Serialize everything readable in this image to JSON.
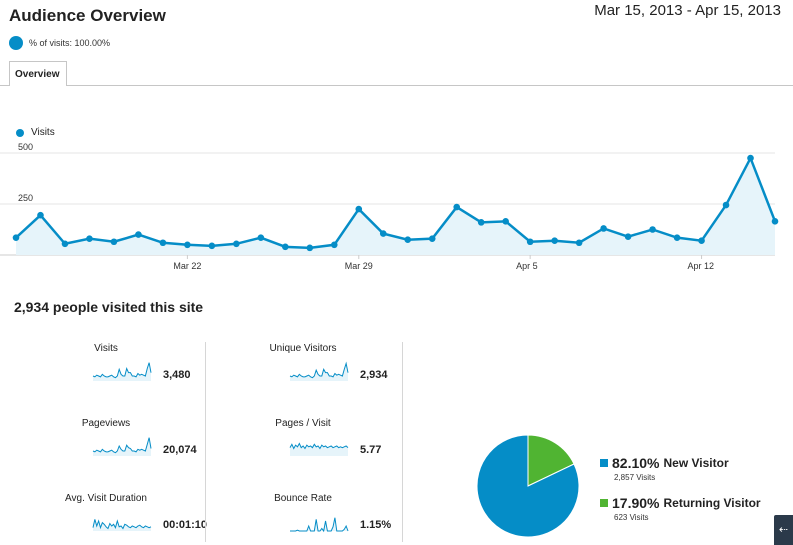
{
  "header": {
    "title": "Audience Overview",
    "date_range": "Mar 15, 2013 - Apr 15, 2013"
  },
  "segment": {
    "label": "% of visits: 100.00%"
  },
  "tabs": [
    {
      "label": "Overview"
    }
  ],
  "chart_data": {
    "type": "line",
    "series": [
      {
        "name": "Visits",
        "values": [
          85,
          195,
          55,
          80,
          65,
          100,
          60,
          50,
          45,
          55,
          85,
          40,
          35,
          50,
          225,
          105,
          75,
          80,
          235,
          160,
          165,
          65,
          70,
          60,
          130,
          90,
          125,
          85,
          70,
          245,
          475,
          165
        ]
      }
    ],
    "x_tick_labels": [
      "Mar 22",
      "Mar 29",
      "Apr 5",
      "Apr 12"
    ],
    "y_tick_labels": [
      "500",
      "250"
    ],
    "ylim": [
      0,
      500
    ],
    "grid": true,
    "colors": {
      "line": "#058dc7",
      "fill": "#e6f4fa"
    }
  },
  "summary": {
    "title": "2,934 people visited this site",
    "metrics": [
      {
        "label": "Visits",
        "value": "3,480"
      },
      {
        "label": "Unique Visitors",
        "value": "2,934"
      },
      {
        "label": "Pageviews",
        "value": "20,074"
      },
      {
        "label": "Pages / Visit",
        "value": "5.77"
      },
      {
        "label": "Avg. Visit Duration",
        "value": "00:01:10"
      },
      {
        "label": "Bounce Rate",
        "value": "1.15%"
      }
    ]
  },
  "visitor_pie": {
    "slices": [
      {
        "name": "New Visitor",
        "pct": "82.10%",
        "visits": "2,857 Visits",
        "fraction": 0.821,
        "color": "#058dc7"
      },
      {
        "name": "Returning Visitor",
        "pct": "17.90%",
        "visits": "623 Visits",
        "fraction": 0.179,
        "color": "#50b432"
      }
    ]
  },
  "corner_button": {
    "icon": "expand-icon",
    "glyph": "⇠"
  }
}
